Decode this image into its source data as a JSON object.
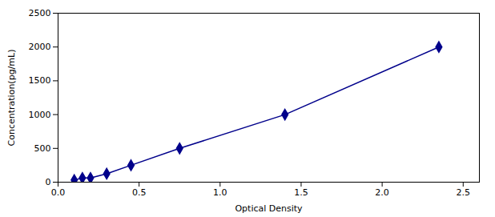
{
  "chart_data": {
    "type": "line",
    "x": [
      0.1,
      0.15,
      0.2,
      0.3,
      0.45,
      0.75,
      1.4,
      2.35
    ],
    "values": [
      31.25,
      62.5,
      62.5,
      125,
      250,
      500,
      1000,
      2000
    ],
    "color": "#00008B",
    "marker": "diamond",
    "line_style": "solid",
    "xlabel": "Optical Density",
    "ylabel": "Concentration(pg/mL)",
    "xlim": [
      0.0,
      2.6
    ],
    "ylim": [
      0,
      2500
    ],
    "xticks": [
      {
        "value": 0,
        "label": "0.0"
      },
      0.5,
      {
        "value": 1.0,
        "label": "1.0"
      },
      1.5,
      {
        "value": 2.0,
        "label": "2.0"
      },
      2.5
    ],
    "yticks": [
      0,
      500,
      1000,
      1500,
      2000,
      2500
    ],
    "grid": false
  }
}
